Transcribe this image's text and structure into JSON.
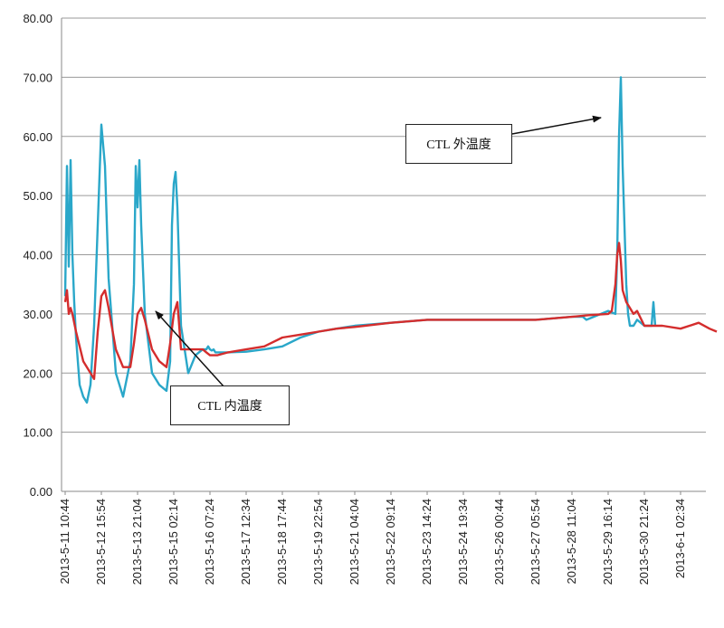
{
  "chart_data": {
    "type": "line",
    "ylim": [
      0,
      80
    ],
    "y_ticks": [
      "0.00",
      "10.00",
      "20.00",
      "30.00",
      "40.00",
      "50.00",
      "60.00",
      "70.00",
      "80.00"
    ],
    "x_tick_labels": [
      "2013-5-11 10:44",
      "2013-5-12 15:54",
      "2013-5-13 21:04",
      "2013-5-15 02:14",
      "2013-5-16 07:24",
      "2013-5-17 12:34",
      "2013-5-18 17:44",
      "2013-5-19 22:54",
      "2013-5-21 04:04",
      "2013-5-22 09:14",
      "2013-5-23 14:24",
      "2013-5-24 19:34",
      "2013-5-26 00:44",
      "2013-5-27 05:54",
      "2013-5-28 11:04",
      "2013-5-29 16:14",
      "2013-5-30 21:24",
      "2013-6-1 02:34"
    ],
    "grid": true,
    "annotations": [
      {
        "text": "CTL  外温度",
        "series": "outer"
      },
      {
        "text": "CTL  内温度",
        "series": "inner"
      }
    ],
    "series": [
      {
        "id": "outer",
        "color": "#2aa7c9",
        "x": [
          0,
          0.05,
          0.1,
          0.15,
          0.2,
          0.25,
          0.3,
          0.35,
          0.4,
          0.5,
          0.6,
          0.7,
          0.8,
          0.9,
          1.0,
          1.1,
          1.2,
          1.4,
          1.6,
          1.8,
          1.9,
          1.95,
          2.0,
          2.05,
          2.1,
          2.2,
          2.4,
          2.6,
          2.8,
          2.9,
          2.95,
          3.0,
          3.05,
          3.1,
          3.2,
          3.4,
          3.6,
          3.8,
          3.9,
          3.95,
          4.0,
          4.05,
          4.1,
          4.15,
          4.2,
          4.3,
          4.5,
          5.0,
          5.5,
          6.0,
          6.5,
          7.0,
          7.5,
          8.0,
          9.0,
          10.0,
          11.0,
          12.0,
          13.0,
          14.0,
          14.3,
          14.4,
          14.6,
          14.8,
          15.0,
          15.2,
          15.25,
          15.3,
          15.35,
          15.4,
          15.45,
          15.5,
          15.55,
          15.6,
          15.7,
          15.8,
          16.0,
          16.2,
          16.25,
          16.3
        ],
        "y": [
          33,
          55,
          38,
          56,
          40,
          32,
          26,
          22,
          18,
          16,
          15,
          18,
          28,
          45,
          62,
          55,
          36,
          20,
          16,
          22,
          35,
          55,
          48,
          56,
          45,
          30,
          20,
          18,
          17,
          22,
          45,
          52,
          54,
          48,
          28,
          20,
          23,
          24,
          24,
          24.5,
          24,
          23.8,
          24,
          23.5,
          23.5,
          23.5,
          23.5,
          23.6,
          24,
          24.5,
          26,
          27,
          27.5,
          28,
          28.5,
          29,
          29,
          29,
          29,
          29.5,
          29.5,
          29,
          29.5,
          30,
          30.5,
          30,
          40,
          60,
          70,
          55,
          45,
          35,
          30,
          28,
          28,
          29,
          28,
          28,
          32,
          28
        ]
      },
      {
        "id": "inner",
        "color": "#d42d2d",
        "x": [
          0,
          0.05,
          0.1,
          0.15,
          0.2,
          0.3,
          0.5,
          0.7,
          0.8,
          0.9,
          1.0,
          1.1,
          1.2,
          1.4,
          1.6,
          1.8,
          1.9,
          2.0,
          2.1,
          2.2,
          2.4,
          2.6,
          2.8,
          2.9,
          3.0,
          3.05,
          3.1,
          3.2,
          3.4,
          3.6,
          3.8,
          3.9,
          4.0,
          4.2,
          4.5,
          5.0,
          5.5,
          6.0,
          6.5,
          7.0,
          7.5,
          8.0,
          9.0,
          10.0,
          11.0,
          12.0,
          13.0,
          14.0,
          14.5,
          15.0,
          15.1,
          15.2,
          15.25,
          15.3,
          15.35,
          15.4,
          15.5,
          15.6,
          15.7,
          15.8,
          16.0,
          16.2,
          16.5,
          17.0,
          17.5,
          17.8,
          18.0
        ],
        "y": [
          32,
          34,
          30,
          31,
          30,
          27,
          22,
          20,
          19,
          27,
          33,
          34,
          31,
          24,
          21,
          21,
          25,
          30,
          31,
          29,
          24,
          22,
          21,
          25,
          30,
          31,
          32,
          24,
          24,
          24,
          24,
          23.5,
          23,
          23,
          23.5,
          24,
          24.5,
          26,
          26.5,
          27,
          27.5,
          27.8,
          28.5,
          29,
          29,
          29,
          29,
          29.5,
          29.8,
          30,
          30.5,
          35,
          40,
          42,
          39,
          34,
          32,
          31,
          30,
          30.5,
          28,
          28,
          28,
          27.5,
          28.5,
          27.5,
          27
        ]
      }
    ]
  }
}
